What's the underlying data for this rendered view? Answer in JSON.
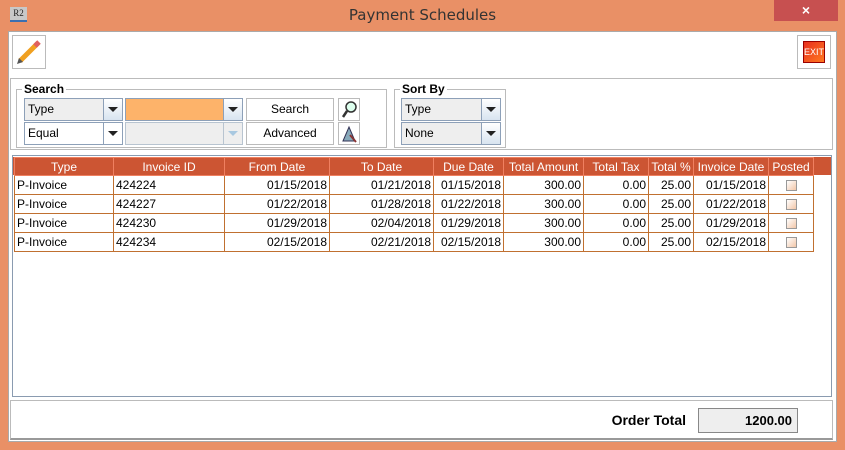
{
  "window": {
    "title": "Payment Schedules",
    "app_icon": "R2",
    "close": "×"
  },
  "toolbar": {
    "edit_icon": "pencil-icon",
    "exit_label": "EXIT"
  },
  "search": {
    "label": "Search",
    "field_combo": "Type",
    "value_combo": "",
    "operator_combo": "Equal",
    "value2_combo": "",
    "search_button": "Search",
    "advanced_button": "Advanced"
  },
  "sort": {
    "label": "Sort By",
    "primary": "Type",
    "secondary": "None"
  },
  "table": {
    "columns": [
      "Type",
      "Invoice ID",
      "From Date",
      "To Date",
      "Due Date",
      "Total Amount",
      "Total Tax",
      "Total %",
      "Invoice Date",
      "Posted"
    ],
    "rows": [
      [
        "P-Invoice",
        "424224",
        "01/15/2018",
        "01/21/2018",
        "01/15/2018",
        "300.00",
        "0.00",
        "25.00",
        "01/15/2018",
        false
      ],
      [
        "P-Invoice",
        "424227",
        "01/22/2018",
        "01/28/2018",
        "01/22/2018",
        "300.00",
        "0.00",
        "25.00",
        "01/22/2018",
        false
      ],
      [
        "P-Invoice",
        "424230",
        "01/29/2018",
        "02/04/2018",
        "01/29/2018",
        "300.00",
        "0.00",
        "25.00",
        "01/29/2018",
        false
      ],
      [
        "P-Invoice",
        "424234",
        "02/15/2018",
        "02/21/2018",
        "02/15/2018",
        "300.00",
        "0.00",
        "25.00",
        "02/15/2018",
        false
      ]
    ]
  },
  "footer": {
    "order_total_label": "Order Total",
    "order_total_value": "1200.00"
  },
  "colors": {
    "frame": "#E99066",
    "header": "#CC5533",
    "value_combo": "#FDB36A",
    "close": "#C75050"
  }
}
